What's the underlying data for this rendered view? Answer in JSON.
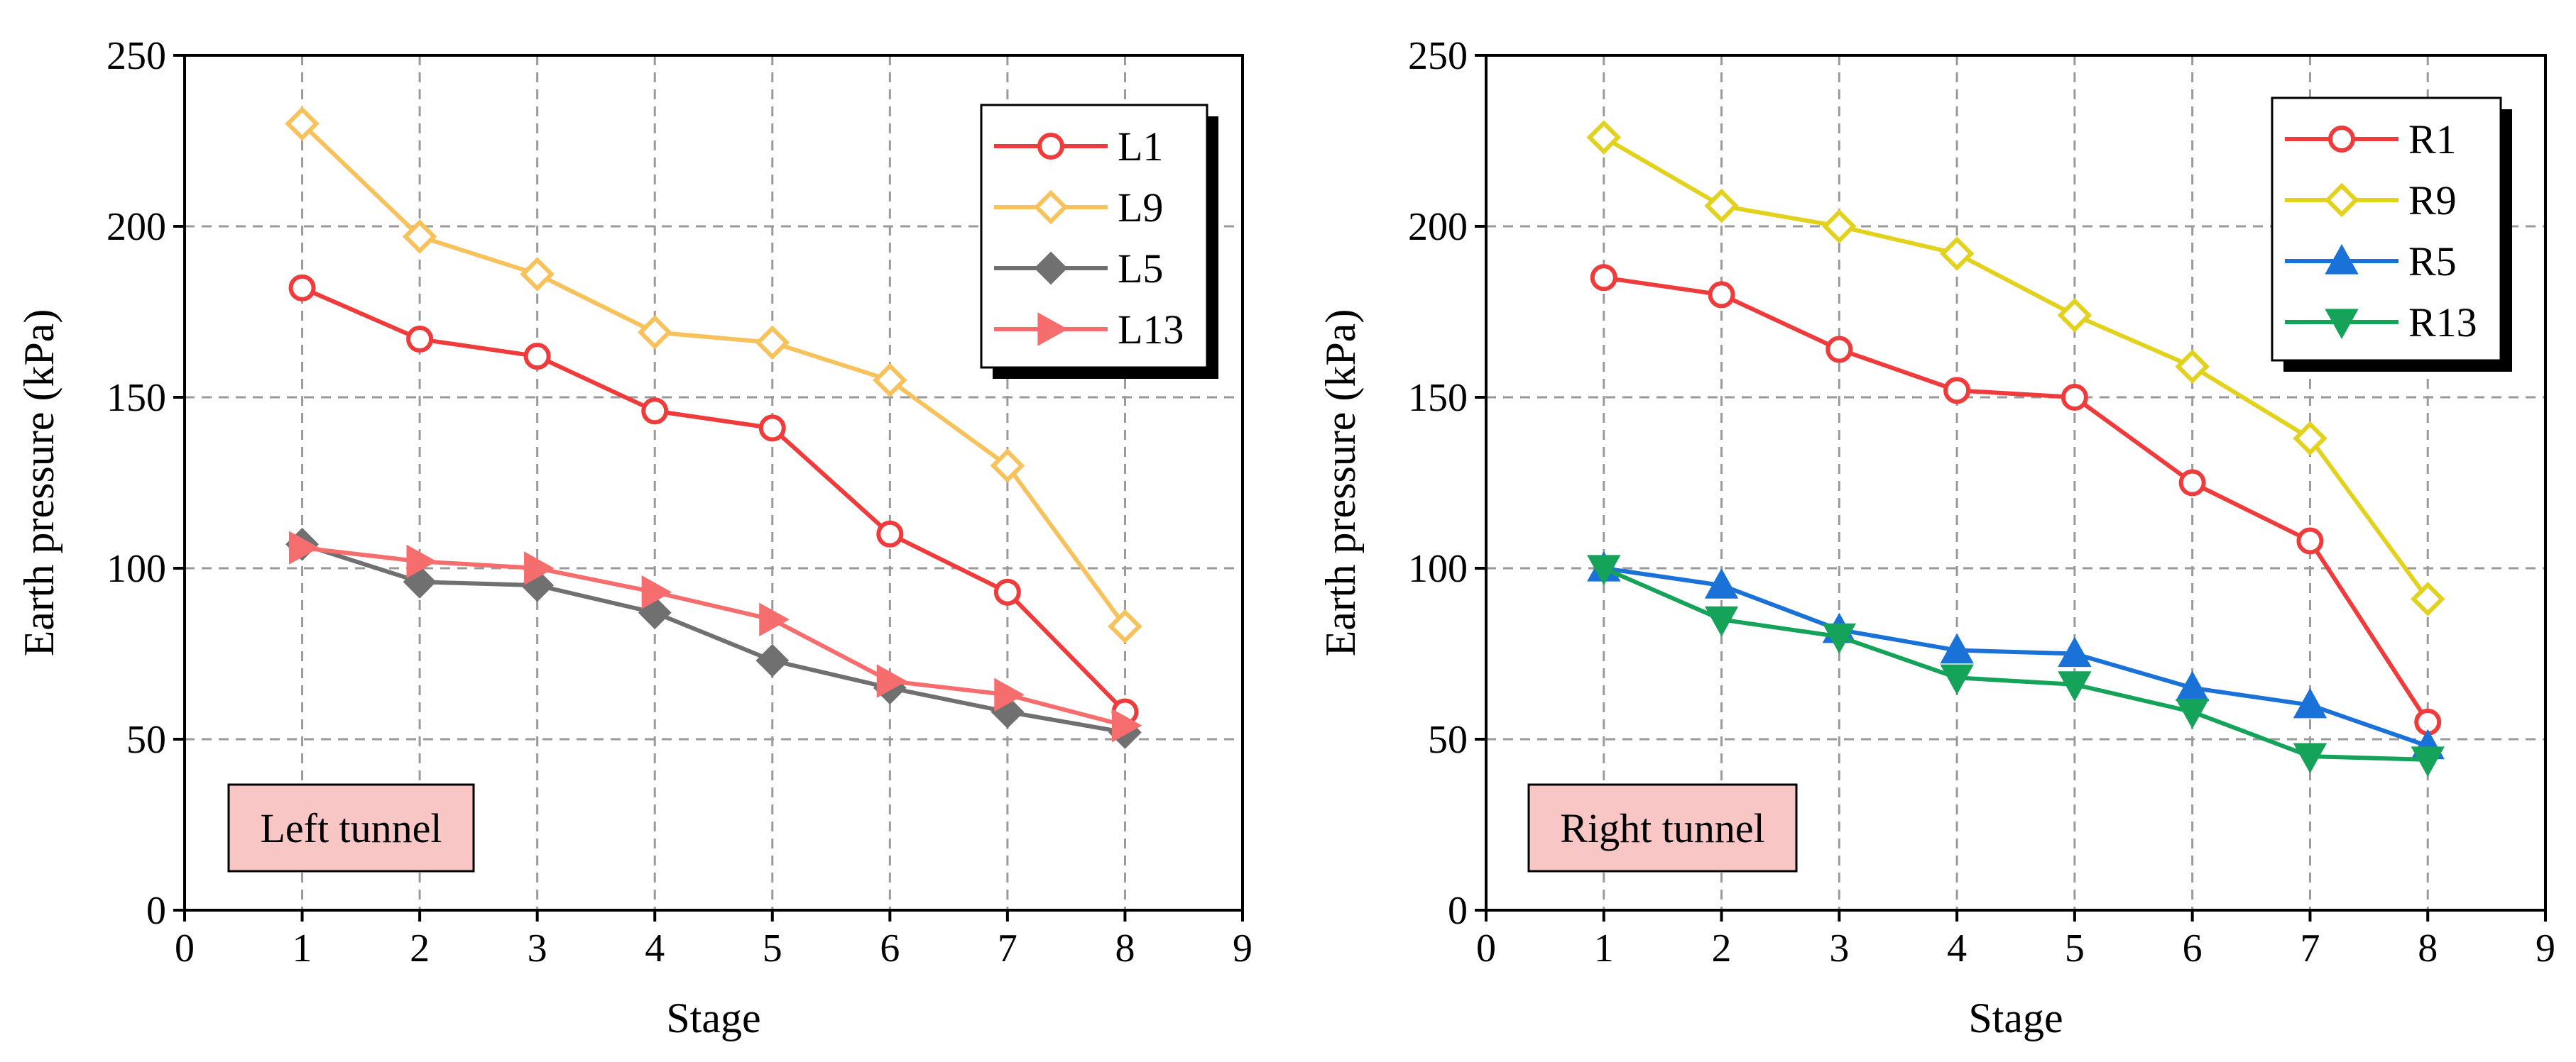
{
  "chart_data": [
    {
      "type": "line",
      "panel": "left",
      "title": "",
      "annotation": "Left tunnel",
      "xlabel": "Stage",
      "ylabel": "Earth pressure (kPa)",
      "xlim": [
        0,
        9
      ],
      "ylim": [
        0,
        250
      ],
      "xticks": [
        0,
        1,
        2,
        3,
        4,
        5,
        6,
        7,
        8,
        9
      ],
      "yticks": [
        0,
        50,
        100,
        150,
        200,
        250
      ],
      "grid": true,
      "legend_position": "top-right",
      "x": [
        1,
        2,
        3,
        4,
        5,
        6,
        7,
        8
      ],
      "series": [
        {
          "name": "L1",
          "marker": "circle-open",
          "color": "#ef3b3b",
          "values": [
            182,
            167,
            162,
            146,
            141,
            110,
            93,
            58
          ]
        },
        {
          "name": "L9",
          "marker": "diamond-open",
          "color": "#f7c15c",
          "values": [
            230,
            197,
            186,
            169,
            166,
            155,
            130,
            83
          ]
        },
        {
          "name": "L5",
          "marker": "diamond-filled",
          "color": "#707070",
          "values": [
            107,
            96,
            95,
            87,
            73,
            65,
            58,
            52
          ]
        },
        {
          "name": "L13",
          "marker": "triangle-right-filled",
          "color": "#f66d6d",
          "values": [
            106,
            102,
            100,
            93,
            85,
            67,
            63,
            54
          ]
        }
      ]
    },
    {
      "type": "line",
      "panel": "right",
      "title": "",
      "annotation": "Right tunnel",
      "xlabel": "Stage",
      "ylabel": "Earth pressure (kPa)",
      "xlim": [
        0,
        9
      ],
      "ylim": [
        0,
        250
      ],
      "xticks": [
        0,
        1,
        2,
        3,
        4,
        5,
        6,
        7,
        8,
        9
      ],
      "yticks": [
        0,
        50,
        100,
        150,
        200,
        250
      ],
      "grid": true,
      "legend_position": "top-right",
      "x": [
        1,
        2,
        3,
        4,
        5,
        6,
        7,
        8
      ],
      "series": [
        {
          "name": "R1",
          "marker": "circle-open",
          "color": "#ef3b3b",
          "values": [
            185,
            180,
            164,
            152,
            150,
            125,
            108,
            55
          ]
        },
        {
          "name": "R9",
          "marker": "diamond-open",
          "color": "#e2d21e",
          "values": [
            226,
            206,
            200,
            192,
            174,
            159,
            138,
            91
          ]
        },
        {
          "name": "R5",
          "marker": "triangle-up-filled",
          "color": "#1a72d9",
          "values": [
            100,
            95,
            82,
            76,
            75,
            65,
            60,
            48
          ]
        },
        {
          "name": "R13",
          "marker": "triangle-down-filled",
          "color": "#15a35a",
          "values": [
            100,
            85,
            80,
            68,
            66,
            58,
            45,
            44
          ]
        }
      ]
    }
  ],
  "styles": {
    "annotation_fill": "#f9c6c6",
    "grid_color": "#9a9a9a",
    "axis_color": "#000000",
    "legend_shadow": "#000000"
  }
}
